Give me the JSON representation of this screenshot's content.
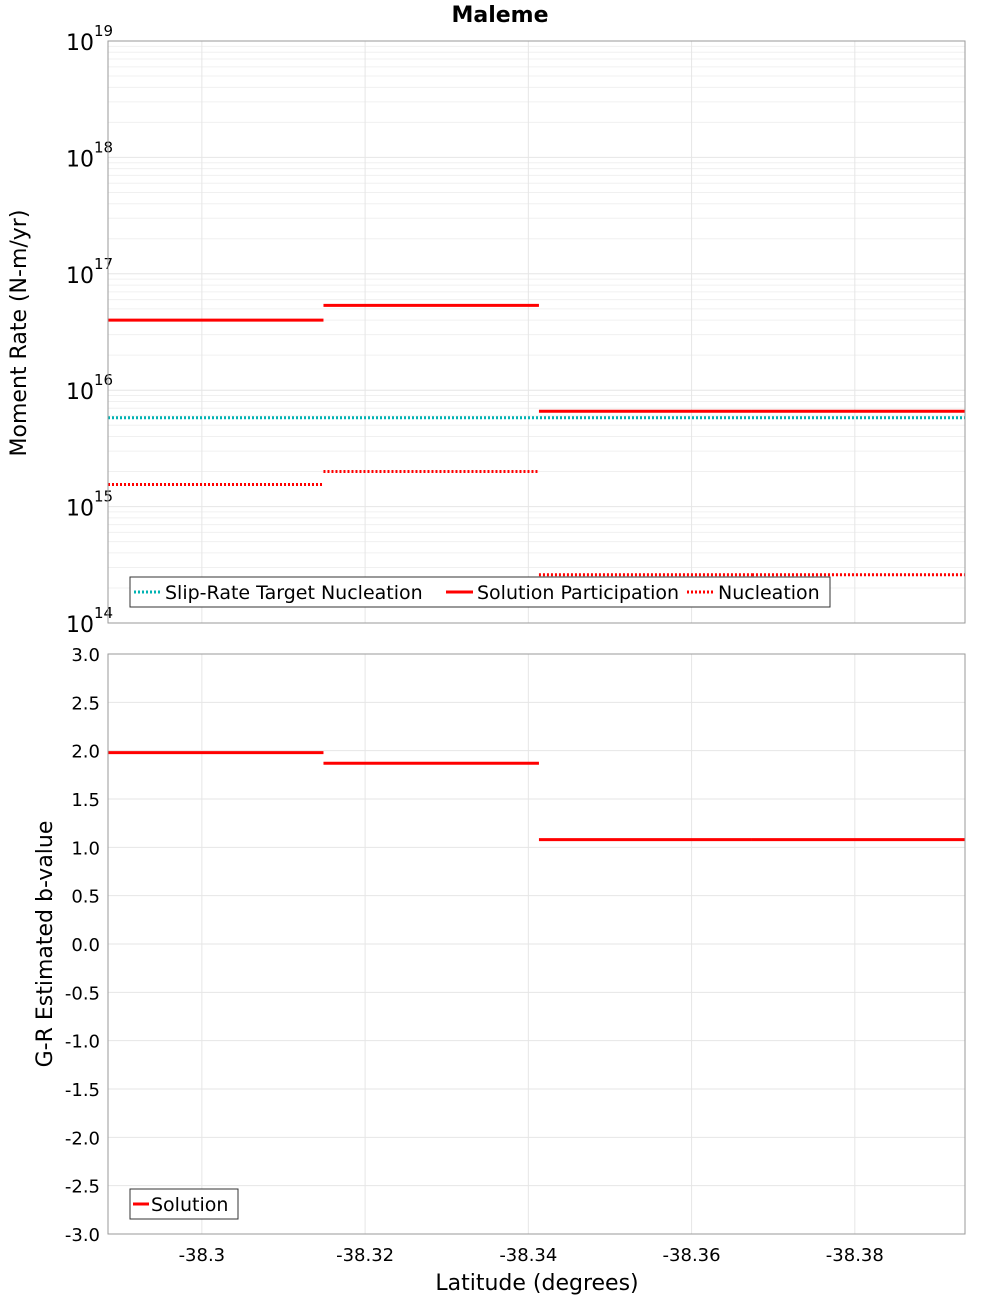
{
  "chart_data": [
    {
      "type": "line",
      "title": "Maleme",
      "ylabel": "Moment Rate (N-m/yr)",
      "xlabel": "",
      "yscale": "log",
      "xlim": [
        -38.2885,
        -38.3935
      ],
      "ylim": [
        100000000000000.0,
        1e+19
      ],
      "grid": true,
      "legend_position": "bottom-left",
      "y_tick_labels": [
        {
          "value": 100000000000000.0,
          "mantissa": "10",
          "exp": "14"
        },
        {
          "value": 1000000000000000.0,
          "mantissa": "10",
          "exp": "15"
        },
        {
          "value": 1e+16,
          "mantissa": "10",
          "exp": "16"
        },
        {
          "value": 1e+17,
          "mantissa": "10",
          "exp": "17"
        },
        {
          "value": 1e+18,
          "mantissa": "10",
          "exp": "18"
        },
        {
          "value": 1e+19,
          "mantissa": "10",
          "exp": "19"
        }
      ],
      "series": [
        {
          "name": "Slip-Rate Target Nucleation",
          "color": "#00b3b3",
          "style": "dotted",
          "segments": [
            {
              "x0": -38.2885,
              "x1": -38.3935,
              "y": 5800000000000000.0
            }
          ]
        },
        {
          "name": "Solution Participation",
          "color": "#ff0000",
          "style": "solid",
          "segments": [
            {
              "x0": -38.2885,
              "x1": -38.3149,
              "y": 4e+16
            },
            {
              "x0": -38.3149,
              "x1": -38.3413,
              "y": 5.35e+16
            },
            {
              "x0": -38.3413,
              "x1": -38.3674,
              "y": 6600000000000000.0
            },
            {
              "x0": -38.3674,
              "x1": -38.3935,
              "y": 6600000000000000.0
            }
          ]
        },
        {
          "name": "Nucleation",
          "color": "#ff0000",
          "style": "dotted",
          "segments": [
            {
              "x0": -38.2885,
              "x1": -38.3149,
              "y": 1550000000000000.0
            },
            {
              "x0": -38.3149,
              "x1": -38.3413,
              "y": 2000000000000000.0
            },
            {
              "x0": -38.3413,
              "x1": -38.3674,
              "y": 260000000000000.0
            },
            {
              "x0": -38.3674,
              "x1": -38.3935,
              "y": 260000000000000.0
            }
          ]
        }
      ]
    },
    {
      "type": "line",
      "title": "",
      "ylabel": "G-R Estimated b-value",
      "xlabel": "Latitude (degrees)",
      "xlim": [
        -38.2885,
        -38.3935
      ],
      "ylim": [
        -3.0,
        3.0
      ],
      "grid": true,
      "legend_position": "bottom-left",
      "x_ticks": [
        -38.3,
        -38.32,
        -38.34,
        -38.36,
        -38.38
      ],
      "x_tick_labels": [
        "-38.3",
        "-38.32",
        "-38.34",
        "-38.36",
        "-38.38"
      ],
      "y_ticks": [
        3.0,
        2.5,
        2.0,
        1.5,
        1.0,
        0.5,
        0.0,
        -0.5,
        -1.0,
        -1.5,
        -2.0,
        -2.5,
        -3.0
      ],
      "y_tick_labels": [
        "3.0",
        "2.5",
        "2.0",
        "1.5",
        "1.0",
        "0.5",
        "0.0",
        "-0.5",
        "-1.0",
        "-1.5",
        "-2.0",
        "-2.5",
        "-3.0"
      ],
      "series": [
        {
          "name": "Solution",
          "color": "#ff0000",
          "style": "solid",
          "segments": [
            {
              "x0": -38.2885,
              "x1": -38.3149,
              "y": 1.98
            },
            {
              "x0": -38.3149,
              "x1": -38.3413,
              "y": 1.87
            },
            {
              "x0": -38.3413,
              "x1": -38.3674,
              "y": 1.08
            },
            {
              "x0": -38.3674,
              "x1": -38.3935,
              "y": 1.08
            }
          ]
        }
      ]
    }
  ]
}
